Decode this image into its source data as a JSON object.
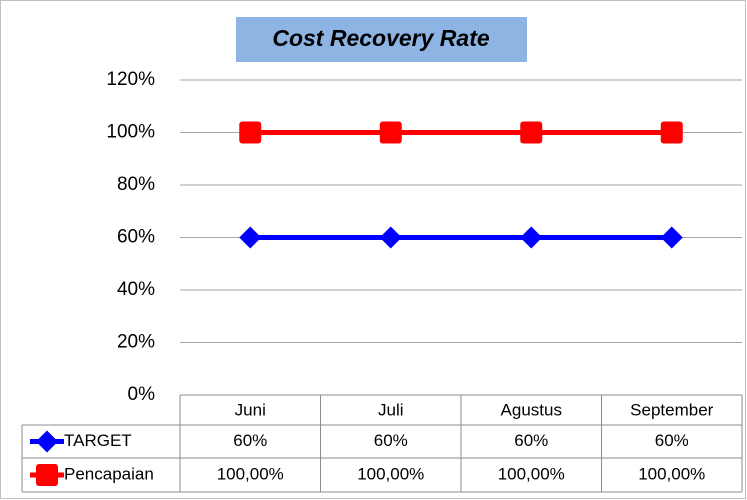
{
  "chart_data": {
    "type": "line",
    "title": "Cost Recovery Rate",
    "categories": [
      "Juni",
      "Juli",
      "Agustus",
      "September"
    ],
    "series": [
      {
        "name": "TARGET",
        "color": "#0000ff",
        "marker": "diamond",
        "values": [
          60,
          60,
          60,
          60
        ],
        "value_labels": [
          "60%",
          "60%",
          "60%",
          "60%"
        ]
      },
      {
        "name": "Pencapaian",
        "color": "#ff0000",
        "marker": "square",
        "values": [
          100,
          100,
          100,
          100
        ],
        "value_labels": [
          "100,00%",
          "100,00%",
          "100,00%",
          "100,00%"
        ]
      }
    ],
    "ylim": [
      0,
      120
    ],
    "yticks": [
      {
        "value": 0,
        "label": "0%"
      },
      {
        "value": 20,
        "label": "20%"
      },
      {
        "value": 40,
        "label": "40%"
      },
      {
        "value": 60,
        "label": "60%"
      },
      {
        "value": 80,
        "label": "80%"
      },
      {
        "value": 100,
        "label": "100%"
      },
      {
        "value": 120,
        "label": "120%"
      }
    ],
    "grid": true,
    "data_table": true
  }
}
